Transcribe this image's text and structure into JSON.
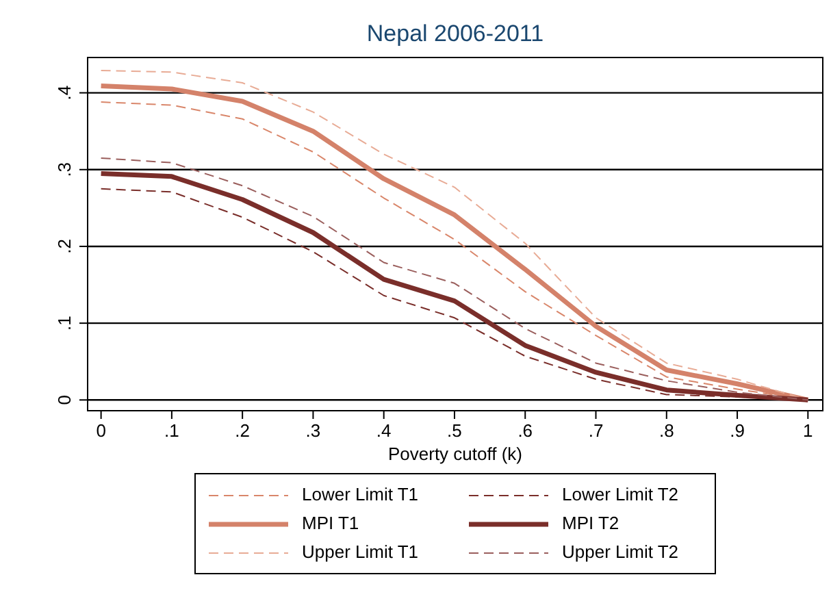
{
  "chart_data": {
    "type": "line",
    "title": "Nepal 2006-2011",
    "xlabel": "Poverty cutoff (k)",
    "x": [
      0,
      0.1,
      0.2,
      0.3,
      0.4,
      0.5,
      0.6,
      0.7,
      0.8,
      0.9,
      1
    ],
    "series": [
      {
        "name": "Lower Limit T1",
        "color": "#d9866a",
        "line_style": "dashed",
        "values": [
          0.388,
          0.384,
          0.366,
          0.323,
          0.263,
          0.209,
          0.141,
          0.084,
          0.03,
          0.014,
          0
        ]
      },
      {
        "name": "MPI T1",
        "color": "#d4826a",
        "line_style": "solid",
        "values": [
          0.409,
          0.405,
          0.389,
          0.35,
          0.288,
          0.241,
          0.17,
          0.096,
          0.039,
          0.021,
          0
        ]
      },
      {
        "name": "Upper Limit T1",
        "color": "#e8ab95",
        "line_style": "dashed",
        "values": [
          0.429,
          0.427,
          0.413,
          0.375,
          0.32,
          0.277,
          0.204,
          0.107,
          0.048,
          0.027,
          0
        ]
      },
      {
        "name": "Lower Limit T2",
        "color": "#7a2e2a",
        "line_style": "dashed",
        "values": [
          0.275,
          0.271,
          0.238,
          0.193,
          0.136,
          0.107,
          0.057,
          0.027,
          0.007,
          0.004,
          0
        ]
      },
      {
        "name": "MPI T2",
        "color": "#7a2e2a",
        "line_style": "solid",
        "values": [
          0.295,
          0.291,
          0.261,
          0.218,
          0.157,
          0.129,
          0.071,
          0.036,
          0.013,
          0.006,
          0
        ]
      },
      {
        "name": "Upper Limit T2",
        "color": "#9a5e5c",
        "line_style": "dashed",
        "values": [
          0.315,
          0.309,
          0.279,
          0.239,
          0.179,
          0.152,
          0.093,
          0.048,
          0.025,
          0.01,
          0
        ]
      }
    ],
    "xlim": [
      -0.019,
      1.021
    ],
    "ylim": [
      -0.014,
      0.446
    ],
    "xticks": [
      0,
      {
        "value": 0.1,
        "label": ".1"
      },
      {
        "value": 0.2,
        "label": ".2"
      },
      {
        "value": 0.3,
        "label": ".3"
      },
      {
        "value": 0.4,
        "label": ".4"
      },
      {
        "value": 0.5,
        "label": ".5"
      },
      {
        "value": 0.6,
        "label": ".6"
      },
      {
        "value": 0.7,
        "label": ".7"
      },
      {
        "value": 0.8,
        "label": ".8"
      },
      {
        "value": 0.9,
        "label": ".9"
      },
      1
    ],
    "yticks": [
      0,
      {
        "value": 0.1,
        "label": ".1"
      },
      {
        "value": 0.2,
        "label": ".2"
      },
      {
        "value": 0.3,
        "label": ".3"
      },
      {
        "value": 0.4,
        "label": ".4"
      }
    ],
    "grid": "y",
    "legend": "bottom",
    "marker": "none"
  }
}
